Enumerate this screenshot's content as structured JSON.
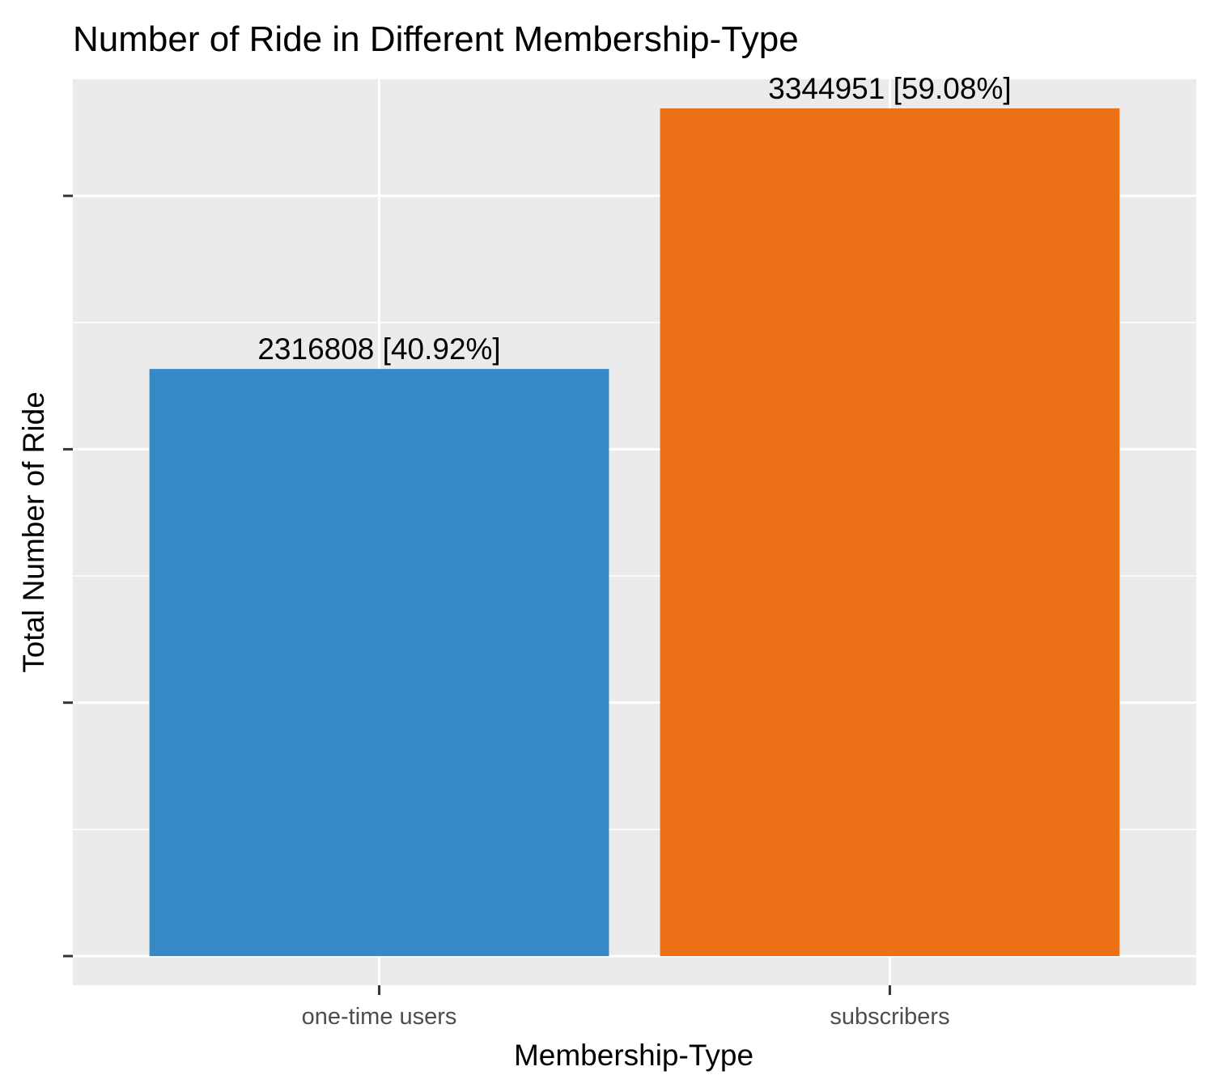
{
  "chart_data": {
    "type": "bar",
    "title": "Number of Ride in Different Membership-Type",
    "xlabel": "Membership-Type",
    "ylabel": "Total Number of Ride",
    "categories": [
      "one-time users",
      "subscribers"
    ],
    "values": [
      2316808,
      3344951
    ],
    "data_labels": [
      "2316808 [40.92%]",
      "3344951 [59.08%]"
    ],
    "colors": [
      "#3589C7",
      "#EC7116"
    ],
    "ylim": [
      -115000,
      3460000
    ],
    "y_major_ticks": [
      0,
      1000000,
      2000000,
      3000000
    ],
    "y_minor_ticks": [
      500000,
      1500000,
      2500000,
      3500000
    ],
    "y_tick_labels_shown": false,
    "grid": true,
    "legend": "none",
    "panel_background": "#EBEBEB",
    "grid_color": "#FFFFFF"
  }
}
